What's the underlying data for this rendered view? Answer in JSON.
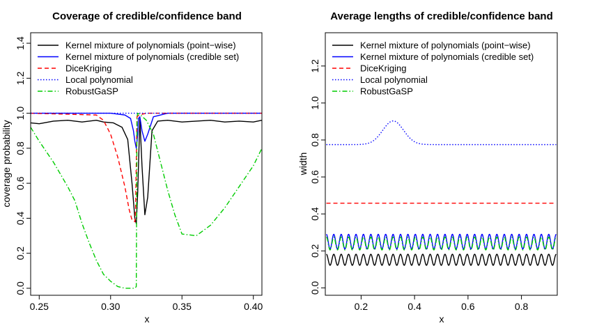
{
  "chart_data": [
    {
      "type": "line",
      "title": "Coverage of credible/confidence band",
      "xlabel": "x",
      "ylabel": "coverage probability",
      "xlim": [
        0.244,
        0.406
      ],
      "ylim": [
        -0.04,
        1.46
      ],
      "x_ticks": [
        0.25,
        0.3,
        0.35,
        0.4
      ],
      "x_tick_labels": [
        "0.25",
        "0.30",
        "0.35",
        "0.40"
      ],
      "y_ticks": [
        0.0,
        0.2,
        0.4,
        0.6,
        0.8,
        1.0,
        1.2,
        1.4
      ],
      "y_tick_labels": [
        "0.0",
        "0.2",
        "0.4",
        "0.6",
        "0.8",
        "1.0",
        "1.2",
        "1.4"
      ],
      "legend_position": "top-left",
      "series": [
        {
          "name": "Kernel mixture of polynomials (point−wise)",
          "color": "#000000",
          "dash": "solid",
          "x": [
            0.244,
            0.25,
            0.26,
            0.27,
            0.28,
            0.29,
            0.295,
            0.302,
            0.308,
            0.312,
            0.315,
            0.317,
            0.318,
            0.319,
            0.3205,
            0.322,
            0.324,
            0.326,
            0.329,
            0.333,
            0.34,
            0.35,
            0.36,
            0.37,
            0.38,
            0.39,
            0.4,
            0.406
          ],
          "y": [
            0.945,
            0.94,
            0.955,
            0.96,
            0.95,
            0.96,
            0.95,
            0.945,
            0.92,
            0.85,
            0.6,
            0.4,
            0.37,
            0.55,
            0.97,
            0.7,
            0.42,
            0.52,
            0.9,
            0.955,
            0.96,
            0.95,
            0.955,
            0.96,
            0.95,
            0.955,
            0.95,
            0.96
          ]
        },
        {
          "name": "Kernel mixture of polynomials (credible set)",
          "color": "#0000ff",
          "dash": "solid",
          "x": [
            0.244,
            0.3,
            0.31,
            0.314,
            0.316,
            0.317,
            0.318,
            0.319,
            0.3195,
            0.3205,
            0.322,
            0.324,
            0.326,
            0.33,
            0.34,
            0.406
          ],
          "y": [
            1.0,
            1.0,
            0.99,
            0.97,
            0.9,
            0.84,
            0.8,
            0.88,
            0.97,
            0.98,
            0.9,
            0.84,
            0.88,
            0.98,
            1.0,
            1.0
          ]
        },
        {
          "name": "DiceKriging",
          "color": "#ff0000",
          "dash": "dashed",
          "x": [
            0.244,
            0.29,
            0.295,
            0.3,
            0.305,
            0.31,
            0.313,
            0.315,
            0.317,
            0.3175,
            0.3185,
            0.32,
            0.325,
            0.33,
            0.406
          ],
          "y": [
            1.0,
            0.99,
            0.96,
            0.88,
            0.75,
            0.58,
            0.45,
            0.39,
            0.38,
            0.45,
            0.98,
            0.99,
            1.0,
            1.0,
            1.0
          ]
        },
        {
          "name": "Local polynomial",
          "color": "#0000ff",
          "dash": "dotted",
          "x": [
            0.244,
            0.406
          ],
          "y": [
            1.0,
            1.0
          ]
        },
        {
          "name": "RobustGaSP",
          "color": "#00cc00",
          "dash": "dashdot",
          "x": [
            0.244,
            0.25,
            0.26,
            0.27,
            0.275,
            0.28,
            0.285,
            0.29,
            0.295,
            0.3,
            0.305,
            0.31,
            0.315,
            0.317,
            0.318,
            0.3185,
            0.319,
            0.321,
            0.325,
            0.33,
            0.335,
            0.34,
            0.345,
            0.35,
            0.36,
            0.37,
            0.38,
            0.39,
            0.4,
            0.406
          ],
          "y": [
            0.92,
            0.84,
            0.72,
            0.58,
            0.5,
            0.37,
            0.26,
            0.16,
            0.08,
            0.04,
            0.01,
            0.0,
            0.0,
            0.0,
            0.01,
            0.98,
            1.0,
            0.99,
            0.96,
            0.88,
            0.72,
            0.56,
            0.42,
            0.31,
            0.3,
            0.36,
            0.46,
            0.58,
            0.7,
            0.8
          ]
        }
      ]
    },
    {
      "type": "line",
      "title": "Average lengths of credible/confidence band",
      "xlabel": "x",
      "ylabel": "width",
      "xlim": [
        0.066,
        0.934
      ],
      "ylim": [
        -0.04,
        1.38
      ],
      "x_ticks": [
        0.2,
        0.4,
        0.6,
        0.8
      ],
      "x_tick_labels": [
        "0.2",
        "0.4",
        "0.6",
        "0.8"
      ],
      "y_ticks": [
        0.0,
        0.2,
        0.4,
        0.6,
        0.8,
        1.0,
        1.2
      ],
      "y_tick_labels": [
        "0.0",
        "0.2",
        "0.4",
        "0.6",
        "0.8",
        "1.0",
        "1.2"
      ],
      "legend_position": "top-left",
      "series": [
        {
          "name": "Kernel mixture of polynomials (point−wise)",
          "color": "#000000",
          "dash": "solid",
          "x_range": [
            0.07,
            0.93
          ],
          "baseline": 0.152,
          "amplitude": 0.03,
          "cycles": 31
        },
        {
          "name": "Kernel mixture of polynomials (credible set)",
          "color": "#0000ff",
          "dash": "solid",
          "x_range": [
            0.07,
            0.93
          ],
          "baseline": 0.25,
          "amplitude": 0.04,
          "cycles": 31
        },
        {
          "name": "DiceKriging",
          "color": "#ff0000",
          "dash": "dashed",
          "x": [
            0.07,
            0.93
          ],
          "y": [
            0.458,
            0.458
          ]
        },
        {
          "name": "Local polynomial",
          "color": "#0000ff",
          "dash": "dotted",
          "x_range": [
            0.07,
            0.93
          ],
          "baseline": 0.775,
          "bump_center": 0.32,
          "bump_height": 0.128,
          "bump_width": 0.055
        },
        {
          "name": "RobustGaSP",
          "color": "#00cc00",
          "dash": "dashdot",
          "x_range": [
            0.07,
            0.93
          ],
          "baseline": 0.24,
          "amplitude": 0.035,
          "cycles": 31
        }
      ]
    }
  ]
}
